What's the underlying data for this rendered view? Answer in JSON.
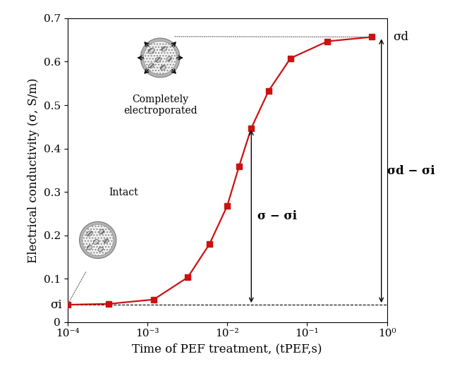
{
  "chart_data": {
    "type": "line",
    "x_label": "Time of PEF treatment, (tPEF,s)",
    "y_label": "Electrical conductivity (σ, S/m)",
    "log": "x",
    "x": [
      0.0001,
      0.00033,
      0.0012,
      0.0032,
      0.006,
      0.01,
      0.014,
      0.02,
      0.033,
      0.062,
      0.18,
      0.65
    ],
    "series": [
      {
        "values": [
          0.04,
          0.042,
          0.052,
          0.103,
          0.18,
          0.268,
          0.358,
          0.447,
          0.533,
          0.608,
          0.647,
          0.657
        ],
        "color": "#cc1111",
        "marker": "s",
        "line_style": "solid"
      }
    ],
    "xlim": [
      0.0001,
      1
    ],
    "xticks": [
      {
        "value": 0.0001,
        "label": "10⁻⁴"
      },
      {
        "value": 0.001,
        "label": "10⁻³"
      },
      {
        "value": 0.01,
        "label": "10⁻²"
      },
      {
        "value": 0.1,
        "label": "10⁻¹"
      },
      {
        "value": 1,
        "label": "10⁰"
      }
    ],
    "ylim": [
      0,
      0.7
    ],
    "yticks": [
      0,
      0.1,
      0.2,
      0.3,
      0.4,
      0.5,
      0.6,
      0.7
    ],
    "grid": false,
    "sigma_i": 0.04,
    "sigma_i_label": "σi",
    "sigma_d": 0.657,
    "sigma_d_label": "σd",
    "arrows": [
      {
        "label": "σ − σi",
        "x": 0.02,
        "from": 0.04,
        "to": 0.447
      },
      {
        "label": "σd − σi",
        "x": 0.85,
        "from": 0.04,
        "to": 0.657
      }
    ],
    "cell_labels": {
      "intact": "Intact",
      "electroporated": "Completely\nelectroporated"
    }
  }
}
